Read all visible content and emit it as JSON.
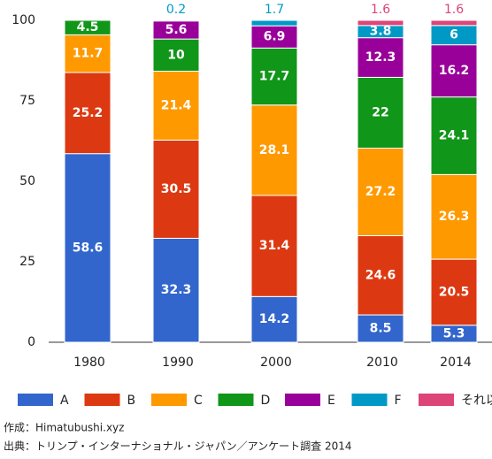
{
  "chart_data": {
    "type": "stacked_bar",
    "categories": [
      "1980",
      "1990",
      "2000",
      "2010",
      "2014"
    ],
    "series": [
      {
        "name": "A",
        "color": "#3366cc",
        "values": [
          58.6,
          32.3,
          14.2,
          8.5,
          5.3
        ]
      },
      {
        "name": "B",
        "color": "#dc3912",
        "values": [
          25.2,
          30.5,
          31.4,
          24.6,
          20.5
        ]
      },
      {
        "name": "C",
        "color": "#ff9900",
        "values": [
          11.7,
          21.4,
          28.1,
          27.2,
          26.3
        ]
      },
      {
        "name": "D",
        "color": "#109618",
        "values": [
          4.5,
          10,
          17.7,
          22,
          24.1
        ]
      },
      {
        "name": "E",
        "color": "#990099",
        "values": [
          null,
          5.6,
          6.9,
          12.3,
          16.2
        ]
      },
      {
        "name": "F",
        "color": "#0099c6",
        "values": [
          null,
          0.2,
          1.7,
          3.8,
          6
        ]
      },
      {
        "name": "それ以上",
        "color": "#dd4477",
        "values": [
          null,
          null,
          null,
          1.6,
          1.6
        ]
      }
    ],
    "ylim": [
      0,
      100
    ],
    "yticks": [
      0,
      25,
      50,
      75,
      100
    ],
    "grid": false,
    "legend": "bottom",
    "notes": [
      "作成：Himatubushi.xyz",
      "出典：トリンプ・インターナショナル・ジャパン／アンケート調査 2014"
    ]
  }
}
